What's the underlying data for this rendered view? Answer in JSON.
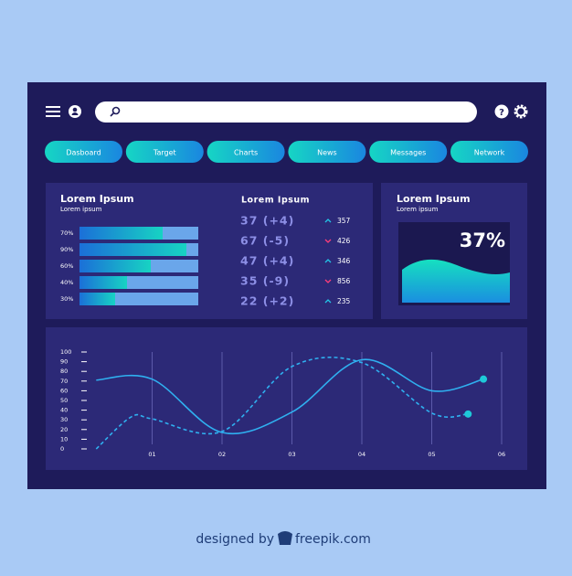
{
  "header": {
    "help": "?"
  },
  "tabs": [
    "Dasboard",
    "Target",
    "Charts",
    "News",
    "Messages",
    "Network"
  ],
  "progress_panel": {
    "title": "Lorem Ipsum",
    "subtitle": "Lorem ipsum",
    "bars": {
      "values": [
        70,
        90,
        60,
        40,
        30
      ],
      "value_labels": [
        "70%",
        "90%",
        "60%",
        "40%",
        "30%"
      ],
      "xlim": [
        0,
        100
      ]
    },
    "stats_title": "Lorem Ipsum",
    "stats": [
      {
        "label": "37 (+4)",
        "trend": "up",
        "value": 357
      },
      {
        "label": "67 (-5)",
        "trend": "down",
        "value": 426
      },
      {
        "label": "47 (+4)",
        "trend": "up",
        "value": 346
      },
      {
        "label": "35 (-9)",
        "trend": "down",
        "value": 856
      },
      {
        "label": "22 (+2)",
        "trend": "up",
        "value": 235
      }
    ]
  },
  "percent_panel": {
    "title": "Lorem Ipsum",
    "subtitle": "Lorem ipsum",
    "percent": "37%"
  },
  "chart_data": {
    "type": "line",
    "xticks": [
      {
        "value": 1,
        "label": "01"
      },
      {
        "value": 2,
        "label": "02"
      },
      {
        "value": 3,
        "label": "03"
      },
      {
        "value": 4,
        "label": "04"
      },
      {
        "value": 5,
        "label": "05"
      },
      {
        "value": 6,
        "label": "06"
      }
    ],
    "xlim": [
      0,
      6
    ],
    "ylim": [
      0,
      100
    ],
    "yticks": [
      0,
      10,
      20,
      30,
      40,
      50,
      60,
      70,
      80,
      90,
      100
    ],
    "series": [
      {
        "color": "#2fb0f0",
        "dash": false,
        "x": [
          0.2,
          1,
          2,
          3,
          4,
          5,
          5.74
        ],
        "values": [
          71,
          72,
          17,
          38,
          92,
          60,
          72
        ]
      },
      {
        "color": "#2fb0f0",
        "dash": true,
        "x": [
          0.2,
          0.7,
          1,
          2,
          3,
          4,
          5,
          5.52
        ],
        "values": [
          0,
          33,
          31,
          18,
          85,
          89,
          37,
          36
        ]
      }
    ]
  },
  "footer": {
    "prefix": "designed by",
    "brand": "freepik.com"
  }
}
